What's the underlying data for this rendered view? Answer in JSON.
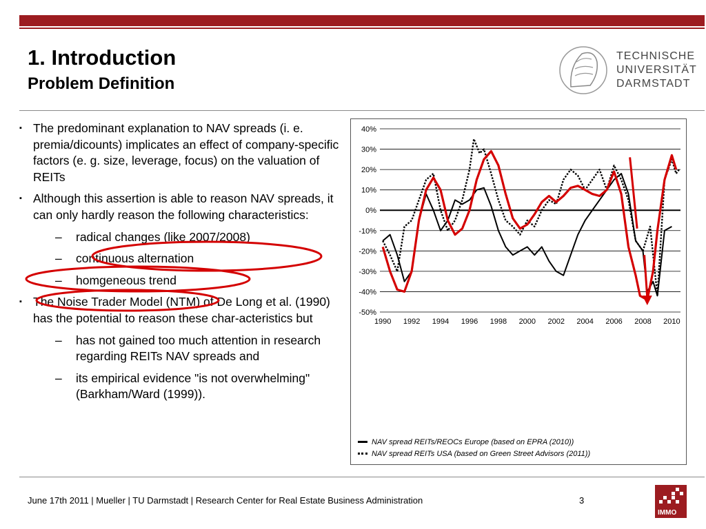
{
  "header": {
    "title": "1. Introduction",
    "subtitle": "Problem Definition",
    "logo_text": [
      "TECHNISCHE",
      "UNIVERSITÄT",
      "DARMSTADT"
    ]
  },
  "bullets": {
    "b1": "The predominant explanation to NAV spreads (i. e. premia/dicounts) implicates an effect of company-specific factors (e. g. size, leverage, focus) on the valuation of REITs",
    "b2": "Although this assertion is able to reason NAV spreads, it can only hardly reason the following characteristics:",
    "b2_sub": [
      "radical changes (like 2007/2008)",
      "continuous alternation",
      "homgeneous trend"
    ],
    "b3": "The Noise Trader Model (NTM) of De Long et al. (1990) has the potential to reason these char-acteristics but",
    "b3_sub": [
      "has not gained too much attention in research regarding REITs NAV spreads and",
      "its empirical evidence \"is not overwhelming\" (Barkham/Ward (1999))."
    ],
    "bullet_marker": "▪",
    "sub_marker": "–"
  },
  "chart_data": {
    "type": "line",
    "x_ticks": [
      1990,
      1992,
      1994,
      1996,
      1998,
      2000,
      2002,
      2004,
      2006,
      2008,
      2010
    ],
    "y_ticks": [
      "40%",
      "30%",
      "20%",
      "10%",
      "0%",
      "-10%",
      "-20%",
      "-30%",
      "-40%",
      "-50%"
    ],
    "ylim": [
      -50,
      40
    ],
    "xlim": [
      1989.8,
      2010.6
    ],
    "series": [
      {
        "name": "NAV spread REITs/REOCs Europe (based on EPRA (2010))",
        "style": "solid",
        "color": "#000000",
        "points": [
          [
            1990,
            -15
          ],
          [
            1990.5,
            -12
          ],
          [
            1991,
            -22
          ],
          [
            1991.5,
            -35
          ],
          [
            1992,
            -30
          ],
          [
            1992.5,
            -5
          ],
          [
            1993,
            8
          ],
          [
            1993.5,
            0
          ],
          [
            1994,
            -10
          ],
          [
            1994.5,
            -5
          ],
          [
            1995,
            5
          ],
          [
            1995.5,
            3
          ],
          [
            1996,
            5
          ],
          [
            1996.5,
            10
          ],
          [
            1997,
            11
          ],
          [
            1997.5,
            2
          ],
          [
            1998,
            -10
          ],
          [
            1998.5,
            -18
          ],
          [
            1999,
            -22
          ],
          [
            1999.5,
            -20
          ],
          [
            2000,
            -18
          ],
          [
            2000.5,
            -22
          ],
          [
            2001,
            -18
          ],
          [
            2001.5,
            -25
          ],
          [
            2002,
            -30
          ],
          [
            2002.5,
            -32
          ],
          [
            2003,
            -22
          ],
          [
            2003.5,
            -12
          ],
          [
            2004,
            -5
          ],
          [
            2004.5,
            0
          ],
          [
            2005,
            5
          ],
          [
            2005.5,
            10
          ],
          [
            2006,
            15
          ],
          [
            2006.5,
            18
          ],
          [
            2007,
            8
          ],
          [
            2007.5,
            -15
          ],
          [
            2008,
            -20
          ],
          [
            2008.3,
            -40
          ],
          [
            2008.7,
            -35
          ],
          [
            2009,
            -42
          ],
          [
            2009.5,
            -10
          ],
          [
            2010,
            -8
          ]
        ]
      },
      {
        "name": "NAV spread REITs USA (based on Green Street Advisors (2011))",
        "style": "dotted",
        "color": "#000000",
        "points": [
          [
            1990,
            -15
          ],
          [
            1990.5,
            -22
          ],
          [
            1991,
            -30
          ],
          [
            1991.5,
            -8
          ],
          [
            1992,
            -5
          ],
          [
            1992.5,
            5
          ],
          [
            1993,
            15
          ],
          [
            1993.5,
            18
          ],
          [
            1994,
            0
          ],
          [
            1994.5,
            -10
          ],
          [
            1995,
            -5
          ],
          [
            1995.5,
            5
          ],
          [
            1996,
            20
          ],
          [
            1996.3,
            35
          ],
          [
            1996.7,
            28
          ],
          [
            1997,
            30
          ],
          [
            1997.5,
            18
          ],
          [
            1998,
            5
          ],
          [
            1998.5,
            -5
          ],
          [
            1999,
            -8
          ],
          [
            1999.5,
            -12
          ],
          [
            2000,
            -5
          ],
          [
            2000.5,
            -8
          ],
          [
            2001,
            0
          ],
          [
            2001.5,
            5
          ],
          [
            2002,
            3
          ],
          [
            2002.5,
            15
          ],
          [
            2003,
            20
          ],
          [
            2003.5,
            17
          ],
          [
            2004,
            10
          ],
          [
            2004.5,
            15
          ],
          [
            2005,
            20
          ],
          [
            2005.5,
            10
          ],
          [
            2006,
            22
          ],
          [
            2006.5,
            15
          ],
          [
            2007,
            5
          ],
          [
            2007.5,
            -15
          ],
          [
            2008,
            -20
          ],
          [
            2008.5,
            -8
          ],
          [
            2009,
            -42
          ],
          [
            2009.5,
            15
          ],
          [
            2010,
            25
          ],
          [
            2010.3,
            18
          ],
          [
            2010.5,
            20
          ]
        ]
      },
      {
        "name": "",
        "style": "trend",
        "color": "#d40000",
        "points": [
          [
            1990,
            -18
          ],
          [
            1990.5,
            -30
          ],
          [
            1991,
            -39
          ],
          [
            1991.5,
            -40
          ],
          [
            1992,
            -30
          ],
          [
            1992.5,
            -5
          ],
          [
            1993,
            10
          ],
          [
            1993.5,
            16
          ],
          [
            1994,
            10
          ],
          [
            1994.5,
            -5
          ],
          [
            1995,
            -12
          ],
          [
            1995.5,
            -9
          ],
          [
            1996,
            0
          ],
          [
            1996.5,
            15
          ],
          [
            1997,
            25
          ],
          [
            1997.5,
            29
          ],
          [
            1998,
            22
          ],
          [
            1998.5,
            8
          ],
          [
            1999,
            -4
          ],
          [
            1999.5,
            -9
          ],
          [
            2000,
            -7
          ],
          [
            2000.5,
            -2
          ],
          [
            2001,
            4
          ],
          [
            2001.5,
            7
          ],
          [
            2002,
            4
          ],
          [
            2002.5,
            7
          ],
          [
            2003,
            11
          ],
          [
            2003.5,
            12
          ],
          [
            2004,
            10
          ],
          [
            2004.5,
            8
          ],
          [
            2005,
            7
          ],
          [
            2005.5,
            10
          ],
          [
            2006,
            19
          ],
          [
            2006.5,
            8
          ],
          [
            2007,
            -18
          ],
          [
            2007.5,
            -32
          ],
          [
            2007.8,
            -42
          ],
          [
            2008.3,
            -44
          ],
          [
            2008.7,
            -30
          ],
          [
            2009,
            -10
          ],
          [
            2009.5,
            15
          ],
          [
            2010,
            27
          ],
          [
            2010.3,
            20
          ]
        ]
      }
    ],
    "legend": [
      {
        "style": "solid",
        "label": "NAV spread REITs/REOCs Europe (based on EPRA (2010))"
      },
      {
        "style": "dotted",
        "label": "NAV spread REITs USA (based on Green Street Advisors (2011))"
      }
    ]
  },
  "footer": {
    "text": "June 17th 2011   |   Mueller   |   TU Darmstadt   |   Research Center for Real Estate Business Administration",
    "page": "3",
    "immo_label": "IMMO"
  },
  "colors": {
    "brand_red": "#9c1c20",
    "annotation_red": "#d40000"
  }
}
